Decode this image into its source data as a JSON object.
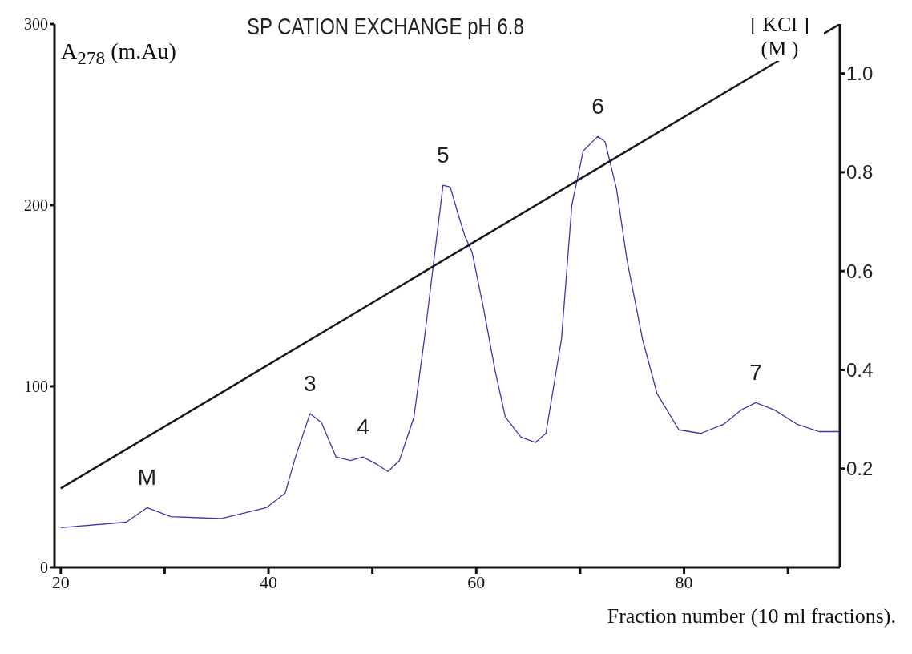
{
  "chart_data": {
    "type": "line",
    "title": "SP CATION EXCHANGE pH 6.8",
    "xlabel": "Fraction number (10 ml fractions).",
    "ylabel": "A$_{278}$ (m.Au)",
    "y2label": "[ KCl ] (M )",
    "series": [
      {
        "color": "#3a3aa8",
        "x": [
          20,
          26.3,
          28.3,
          30.6,
          35.5,
          39.8,
          41.6,
          42.6,
          44.0,
          45.1,
          46.5,
          47.9,
          49.1,
          50.4,
          51.5,
          52.6,
          54.0,
          55.0,
          56.1,
          56.8,
          57.5,
          58.2,
          58.9,
          59.6,
          60.7,
          61.8,
          62.8,
          64.3,
          65.7,
          66.7,
          68.2,
          69.2,
          70.3,
          71.7,
          72.4,
          73.5,
          74.5,
          76.0,
          77.4,
          79.5,
          81.6,
          83.8,
          85.5,
          86.9,
          88.7,
          90.9,
          93.0,
          95
        ],
        "values": [
          22,
          25,
          33,
          28,
          27,
          33,
          41,
          61,
          85,
          80,
          61,
          59,
          61,
          57,
          53,
          59,
          83,
          126,
          178,
          211,
          210,
          196,
          183,
          174,
          143,
          109,
          83,
          72,
          69,
          74,
          126,
          200,
          230,
          238,
          235,
          209,
          170,
          126,
          96,
          76,
          74,
          79,
          87,
          91,
          87,
          79,
          75,
          75
        ]
      },
      {
        "color": "#1a1a1a",
        "axis": "y2",
        "x": [
          20,
          95
        ],
        "values": [
          0.16,
          1.1
        ]
      }
    ],
    "xlim": [
      19.4,
      95
    ],
    "xticks": [
      20,
      {
        "value": 30,
        "label": null
      },
      40,
      {
        "value": 50,
        "label": null
      },
      60,
      {
        "value": 70,
        "label": null
      },
      80,
      {
        "value": 90,
        "label": null
      }
    ],
    "ylim": [
      0,
      300
    ],
    "yticks": [
      0,
      100,
      200,
      300
    ],
    "y2lim": [
      0,
      1.1
    ],
    "y2ticks": [
      0.2,
      0.4,
      0.6,
      0.8,
      {
        "value": 1,
        "label": "1.0"
      }
    ],
    "annotations": [
      {
        "text": "M",
        "x": 28.3,
        "y": 33
      },
      {
        "text": "3",
        "x": 44.0,
        "y": 85
      },
      {
        "text": "4",
        "x": 49.1,
        "y": 61
      },
      {
        "text": "5",
        "x": 56.8,
        "y": 211
      },
      {
        "text": "6",
        "x": 71.7,
        "y": 238
      },
      {
        "text": "7",
        "x": 86.9,
        "y": 91
      }
    ],
    "grid": false,
    "legend": false,
    "marker": "none",
    "line_style": "solid"
  }
}
